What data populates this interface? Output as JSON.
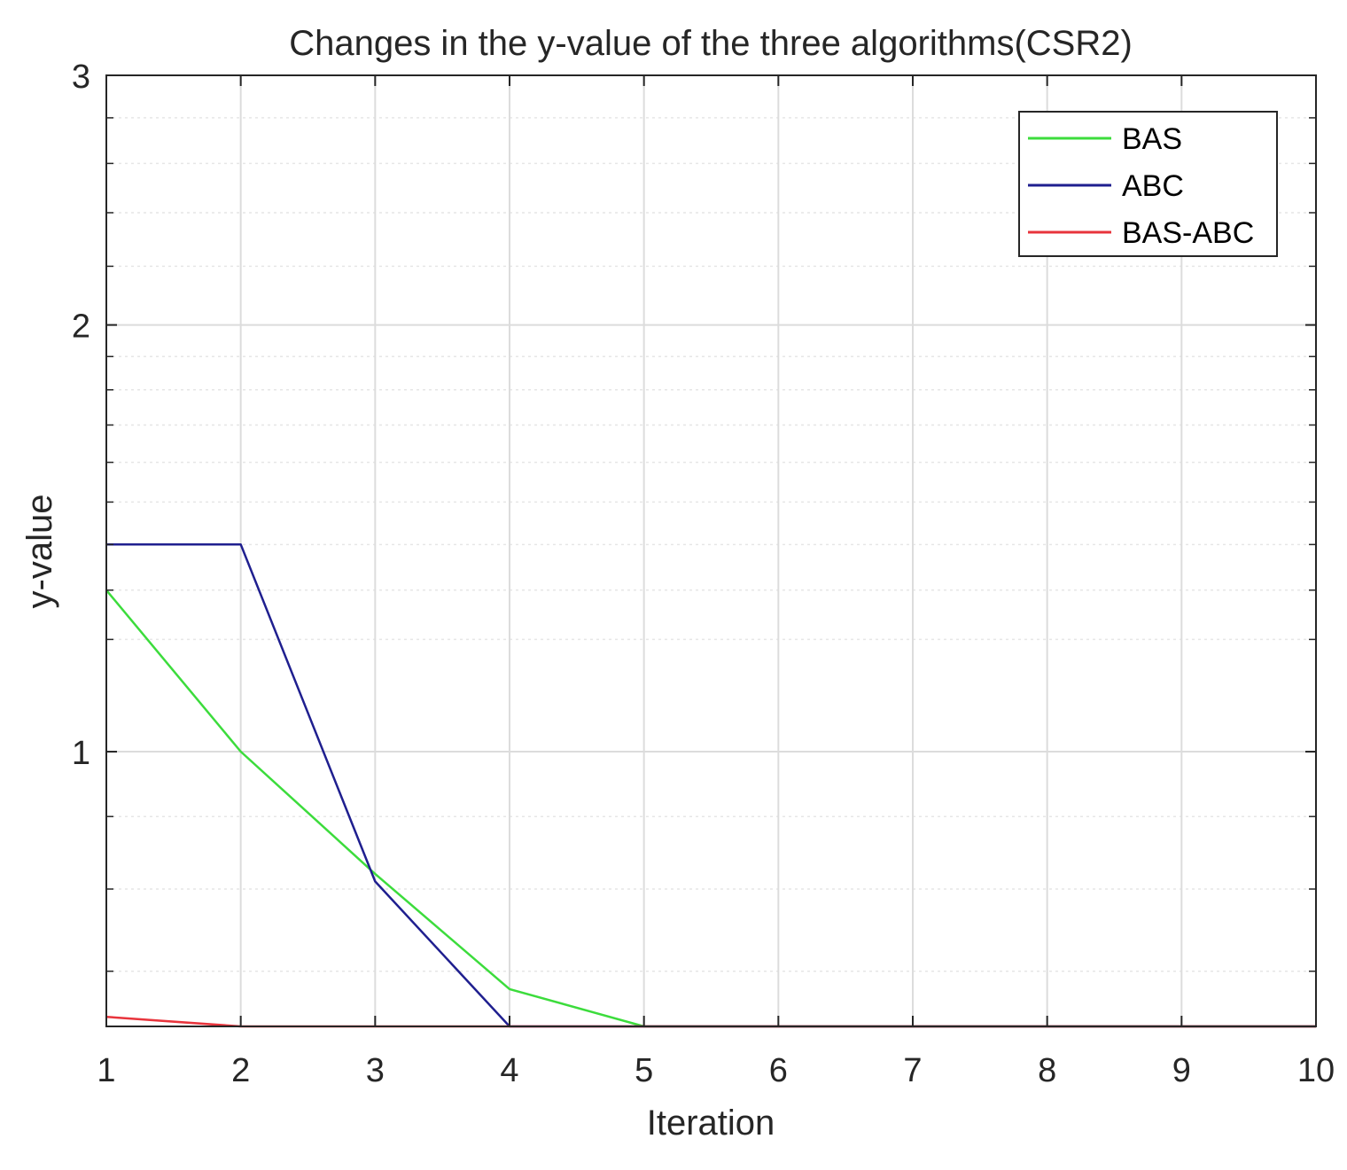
{
  "chart_data": {
    "type": "line",
    "title": "Changes in the y-value of the three algorithms(CSR2)",
    "xlabel": "Iteration",
    "ylabel": "y-value",
    "xlim": [
      1,
      10
    ],
    "ylim": [
      0,
      3
    ],
    "y_scale": "log",
    "x_ticks": [
      1,
      2,
      3,
      4,
      5,
      6,
      7,
      8,
      9,
      10
    ],
    "y_ticks": [
      1,
      2,
      3
    ],
    "grid": true,
    "legend_position": "top-right",
    "x": [
      1,
      2,
      3,
      4,
      5,
      6,
      7,
      8,
      9,
      10
    ],
    "series": [
      {
        "name": "BAS",
        "color": "#3cdc3c",
        "values": [
          1.3,
          1.0,
          0.82,
          0.68,
          0.64,
          0.64,
          0.64,
          0.64,
          0.64,
          0.64
        ]
      },
      {
        "name": "ABC",
        "color": "#1f1f8f",
        "values": [
          1.4,
          1.4,
          0.81,
          0.64,
          0.64,
          0.64,
          0.64,
          0.64,
          0.64,
          0.64
        ]
      },
      {
        "name": "BAS-ABC",
        "color": "#e8343c",
        "values": [
          0.65,
          0.64,
          0.64,
          0.64,
          0.64,
          0.64,
          0.64,
          0.64,
          0.64,
          0.64
        ]
      }
    ]
  }
}
